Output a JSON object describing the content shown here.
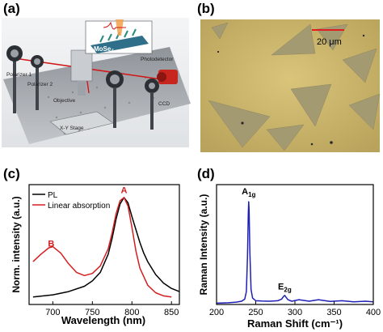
{
  "figure": {
    "panels": [
      "(a)",
      "(b)",
      "(c)",
      "(d)"
    ]
  },
  "panel_a": {
    "labels": {
      "mose2": "MoSe₂",
      "photodetector": "Photodetector",
      "polarizer1": "Polarizer 1",
      "polarizer2": "Polarizer 2",
      "objective": "Objective",
      "xy_stage": "X-Y Stage",
      "ccd": "CCD"
    }
  },
  "panel_b": {
    "scale_bar": "20 μm",
    "colors": {
      "substrate": "#c9b36a",
      "flake": "#a39a72",
      "scale_bar": "#e02020"
    }
  },
  "colors": {
    "black_series": "#000000",
    "red_series": "#d41f1f",
    "blue_series": "#1d1fb5"
  },
  "chart_data": [
    {
      "panel": "(c)",
      "type": "line",
      "xlabel": "Wavelength (nm)",
      "ylabel": "Norm. intensity (a.u.)",
      "xlim": [
        670,
        860
      ],
      "ylim": [
        0,
        1.12
      ],
      "xticks": [
        700,
        750,
        800,
        850
      ],
      "legend": "top-left",
      "annotations": [
        {
          "text": "A",
          "x": 790,
          "y": 1.04,
          "color": "#d41f1f"
        },
        {
          "text": "B",
          "x": 698,
          "y": 0.54,
          "color": "#d41f1f"
        }
      ],
      "series": [
        {
          "name": "PL",
          "color": "#000000",
          "x": [
            675,
            700,
            720,
            740,
            750,
            760,
            770,
            775,
            780,
            785,
            790,
            795,
            800,
            805,
            810,
            815,
            820,
            830,
            840,
            850,
            860
          ],
          "y": [
            0.07,
            0.09,
            0.12,
            0.17,
            0.22,
            0.3,
            0.47,
            0.62,
            0.8,
            0.94,
            1.0,
            0.95,
            0.82,
            0.7,
            0.58,
            0.48,
            0.4,
            0.28,
            0.2,
            0.15,
            0.12
          ]
        },
        {
          "name": "Linear absorption",
          "color": "#d41f1f",
          "x": [
            675,
            685,
            695,
            700,
            710,
            720,
            730,
            740,
            750,
            760,
            770,
            775,
            780,
            785,
            790,
            795,
            800,
            805,
            810,
            820,
            830,
            840,
            850
          ],
          "y": [
            0.4,
            0.47,
            0.53,
            0.54,
            0.48,
            0.38,
            0.3,
            0.27,
            0.29,
            0.36,
            0.52,
            0.67,
            0.85,
            0.97,
            1.0,
            0.92,
            0.72,
            0.5,
            0.34,
            0.18,
            0.11,
            0.08,
            0.07
          ]
        }
      ]
    },
    {
      "panel": "(d)",
      "type": "line",
      "xlabel": "Raman Shift (cm⁻¹)",
      "ylabel": "Raman Intensity (a.u.)",
      "xlim": [
        200,
        400
      ],
      "ylim": [
        0,
        1.12
      ],
      "xticks": [
        200,
        250,
        300,
        350,
        400
      ],
      "annotations": [
        {
          "text": "A",
          "sub": "1g",
          "x": 241,
          "y": 1.03
        },
        {
          "text": "E",
          "sub": "2g",
          "x": 287,
          "y": 0.14
        }
      ],
      "series": [
        {
          "color": "#1d1fb5",
          "x": [
            200,
            215,
            225,
            232,
            236,
            238,
            239.5,
            240.5,
            241,
            241.5,
            242.5,
            244,
            246,
            250,
            258,
            268,
            278,
            283,
            285.5,
            287,
            288.5,
            291,
            296,
            305,
            318,
            330,
            345,
            360,
            375,
            390,
            400
          ],
          "y": [
            0.012,
            0.016,
            0.022,
            0.03,
            0.05,
            0.12,
            0.45,
            0.85,
            0.96,
            0.88,
            0.5,
            0.14,
            0.06,
            0.035,
            0.032,
            0.03,
            0.035,
            0.05,
            0.075,
            0.085,
            0.07,
            0.045,
            0.03,
            0.045,
            0.03,
            0.045,
            0.028,
            0.035,
            0.025,
            0.03,
            0.025
          ]
        }
      ]
    }
  ]
}
